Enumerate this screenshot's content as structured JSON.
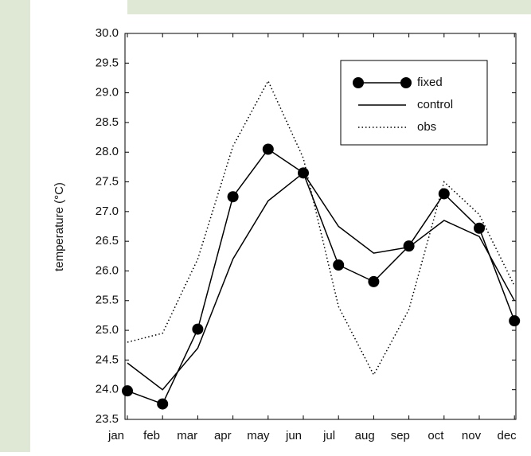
{
  "chart_data": {
    "type": "line",
    "y_label": "temperature (°C)",
    "categories": [
      "jan",
      "feb",
      "mar",
      "apr",
      "may",
      "jun",
      "jul",
      "aug",
      "sep",
      "oct",
      "nov",
      "dec"
    ],
    "series": [
      {
        "name": "fixed",
        "color": "#000000",
        "marker": "circle",
        "dash": "solid",
        "values": [
          23.98,
          23.76,
          25.02,
          27.25,
          28.05,
          27.65,
          26.1,
          25.82,
          26.42,
          27.3,
          26.72,
          25.16
        ]
      },
      {
        "name": "control",
        "color": "#000000",
        "marker": "none",
        "dash": "solid",
        "values": [
          24.45,
          24.0,
          24.7,
          26.2,
          27.18,
          27.65,
          26.75,
          26.3,
          26.4,
          26.85,
          26.58,
          25.5
        ]
      },
      {
        "name": "obs",
        "color": "#000000",
        "marker": "none",
        "dash": "dotted",
        "values": [
          24.8,
          24.95,
          26.2,
          28.1,
          29.2,
          27.9,
          25.4,
          24.25,
          25.35,
          27.5,
          26.95,
          25.75
        ]
      }
    ],
    "ylim": [
      23.5,
      30.0
    ],
    "yticks": [
      23.5,
      {
        "value": 24,
        "label": "24.0"
      },
      24.5,
      {
        "value": 25,
        "label": "25.0"
      },
      25.5,
      {
        "value": 26,
        "label": "26.0"
      },
      26.5,
      {
        "value": 27,
        "label": "27.0"
      },
      27.5,
      {
        "value": 28,
        "label": "28.0"
      },
      28.5,
      {
        "value": 29,
        "label": "29.0"
      },
      29.5,
      {
        "value": 30,
        "label": "30.0"
      }
    ],
    "grid": false,
    "legend": "upper right"
  }
}
